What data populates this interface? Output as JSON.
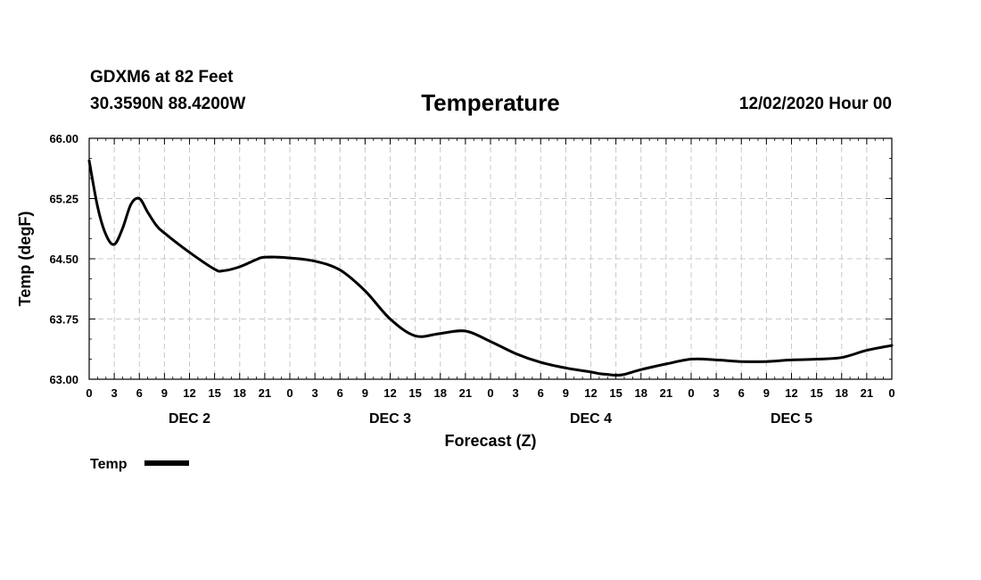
{
  "header": {
    "station": "GDXM6 at 82 Feet",
    "coords": "30.3590N 88.4200W",
    "title": "Temperature",
    "date": "12/02/2020 Hour 00"
  },
  "chart_data": {
    "type": "line",
    "title": "Temperature",
    "xlabel": "Forecast (Z)",
    "ylabel": "Temp (degF)",
    "ylim": [
      63.0,
      66.0
    ],
    "xlim": [
      0,
      96
    ],
    "y_ticks": [
      "63.00",
      "63.75",
      "64.50",
      "65.25",
      "66.00"
    ],
    "x_tick_labels": [
      "0",
      "3",
      "6",
      "9",
      "12",
      "15",
      "18",
      "21",
      "0",
      "3",
      "6",
      "9",
      "12",
      "15",
      "18",
      "21",
      "0",
      "3",
      "6",
      "9",
      "12",
      "15",
      "18",
      "21",
      "0",
      "3",
      "6",
      "9",
      "12",
      "15",
      "18",
      "21",
      "0"
    ],
    "day_labels": [
      {
        "label": "DEC 2",
        "center_hour": 12
      },
      {
        "label": "DEC 3",
        "center_hour": 36
      },
      {
        "label": "DEC 4",
        "center_hour": 60
      },
      {
        "label": "DEC 5",
        "center_hour": 84
      }
    ],
    "grid": true,
    "legend": {
      "position": "bottom-left",
      "label": "Temp"
    },
    "series": [
      {
        "name": "Temp",
        "color": "#000000",
        "x": [
          0,
          1,
          2,
          3,
          4,
          5,
          6,
          7,
          8,
          9,
          12,
          15,
          16,
          18,
          20,
          21,
          24,
          27,
          30,
          33,
          36,
          39,
          42,
          45,
          48,
          51,
          54,
          57,
          60,
          61,
          62,
          63,
          64,
          66,
          69,
          72,
          75,
          78,
          81,
          84,
          87,
          90,
          93,
          96
        ],
        "values": [
          65.72,
          65.15,
          64.8,
          64.68,
          64.88,
          65.18,
          65.25,
          65.08,
          64.92,
          64.82,
          64.58,
          64.37,
          64.35,
          64.4,
          64.49,
          64.52,
          64.51,
          64.47,
          64.36,
          64.1,
          63.75,
          63.54,
          63.57,
          63.6,
          63.47,
          63.32,
          63.21,
          63.14,
          63.09,
          63.07,
          63.06,
          63.05,
          63.06,
          63.12,
          63.19,
          63.25,
          63.24,
          63.22,
          63.22,
          63.24,
          63.25,
          63.27,
          63.36,
          63.42
        ]
      }
    ]
  }
}
